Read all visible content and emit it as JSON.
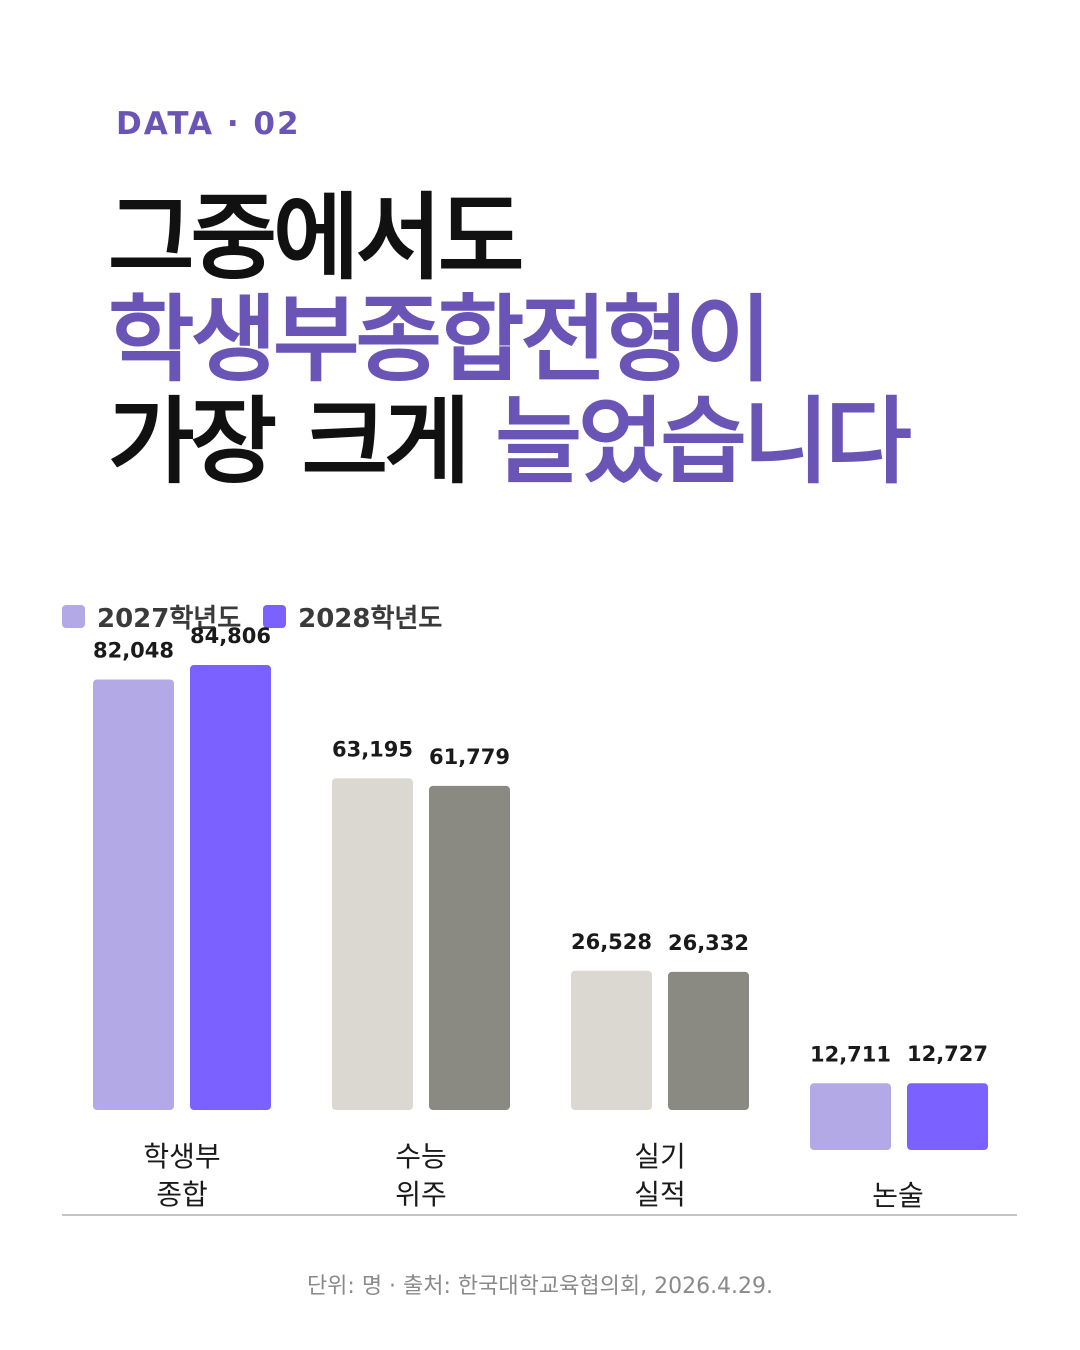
{
  "eyebrow": "DATA · 02",
  "headline": {
    "line1": "그중에서도",
    "line2": "학생부종합전형이",
    "line3_a": "가장 크게",
    "line3_b": "늘었습니다"
  },
  "colors": {
    "accent": "#6a54b6",
    "2027_highlight": "#b3a9e6",
    "2028_highlight": "#7b61ff",
    "2027_muted": "#dbd8d1",
    "2028_muted": "#8a8a82",
    "axis": "#c4c4c4"
  },
  "chart_data": {
    "type": "bar",
    "categories": [
      [
        "학생부",
        "종합"
      ],
      [
        "수능",
        "위주"
      ],
      [
        "실기",
        "실적"
      ],
      [
        "논술"
      ]
    ],
    "series": [
      {
        "name": "2027학년도",
        "values": [
          82048,
          63195,
          26528,
          12711
        ]
      },
      {
        "name": "2028학년도",
        "values": [
          84806,
          61779,
          26332,
          12727
        ]
      }
    ],
    "value_labels": [
      [
        "82,048",
        "63,195",
        "26,528",
        "12,711"
      ],
      [
        "84,806",
        "61,779",
        "26,332",
        "12,727"
      ]
    ],
    "highlighted_categories": [
      0,
      3
    ],
    "title": "",
    "xlabel": "",
    "ylabel": "",
    "legend": "top-left",
    "grid": false
  },
  "footer": "단위: 명 · 출처: 한국대학교육협의회, 2026.4.29."
}
